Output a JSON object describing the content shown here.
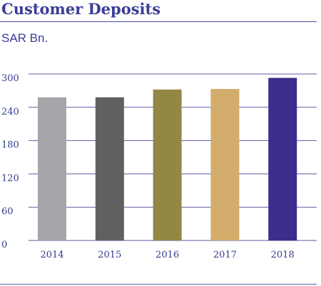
{
  "title": "Customer Deposits",
  "unit": "SAR Bn.",
  "chart_data": {
    "type": "bar",
    "categories": [
      "2014",
      "2015",
      "2016",
      "2017",
      "2018"
    ],
    "values": [
      258,
      258,
      272,
      273,
      293
    ],
    "colors": [
      "#a5a6a9",
      "#606060",
      "#948743",
      "#d3ad6b",
      "#3b2d8c"
    ],
    "yticks": [
      0,
      60,
      120,
      180,
      240,
      300
    ],
    "ylim": [
      0,
      300
    ],
    "grid": true,
    "title": "Customer Deposits",
    "ylabel": "SAR Bn.",
    "xlabel": ""
  }
}
